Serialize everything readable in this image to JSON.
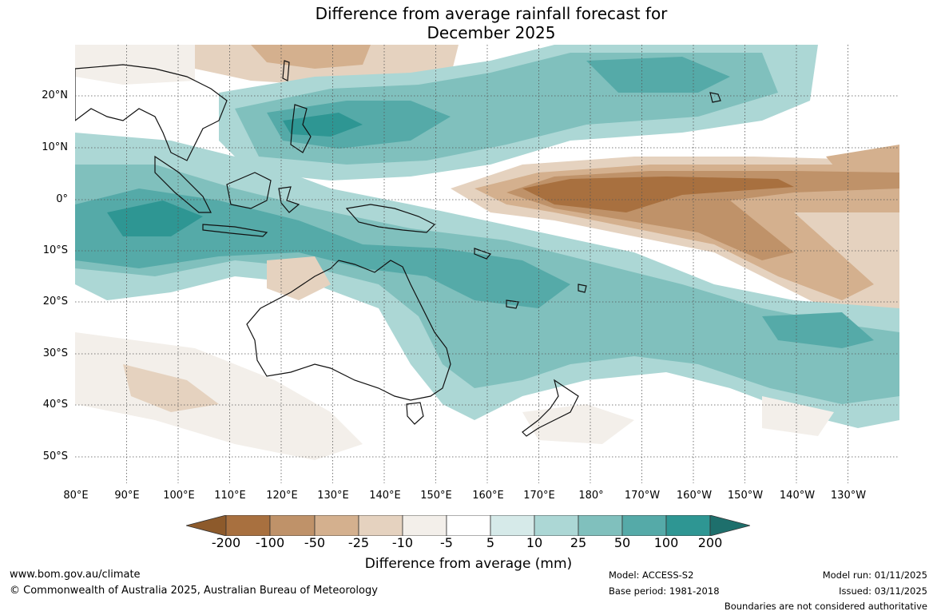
{
  "title": {
    "line1": "Difference from average rainfall forecast for",
    "line2": "December 2025"
  },
  "latitude_labels": [
    "20°N",
    "10°N",
    "0°",
    "10°S",
    "20°S",
    "30°S",
    "40°S",
    "50°S"
  ],
  "longitude_labels": [
    "80°E",
    "90°E",
    "100°E",
    "110°E",
    "120°E",
    "130°E",
    "140°E",
    "150°E",
    "160°E",
    "170°E",
    "180°",
    "170°W",
    "160°W",
    "150°W",
    "140°W",
    "130°W"
  ],
  "colorbar": {
    "ticks": [
      "-200",
      "-100",
      "-50",
      "-25",
      "-10",
      "-5",
      "5",
      "10",
      "25",
      "50",
      "100",
      "200"
    ],
    "colors": [
      "#8d5a2b",
      "#a8703f",
      "#bf9269",
      "#d4b08e",
      "#e5d2bf",
      "#f3efea",
      "#ffffff",
      "#d6eae9",
      "#acd7d5",
      "#80c0bd",
      "#55aaa8",
      "#2e9693",
      "#1e6f6c"
    ],
    "label": "Difference from average (mm)"
  },
  "footer": {
    "website": "www.bom.gov.au/climate",
    "copyright": "© Commonwealth of Australia 2025, Australian Bureau of Meteorology",
    "model": "Model: ACCESS-S2",
    "base_period": "Base period: 1981-2018",
    "model_run": "Model run: 01/11/2025",
    "issued": "Issued: 03/11/2025",
    "disclaimer": "Boundaries are not considered authoritative"
  }
}
